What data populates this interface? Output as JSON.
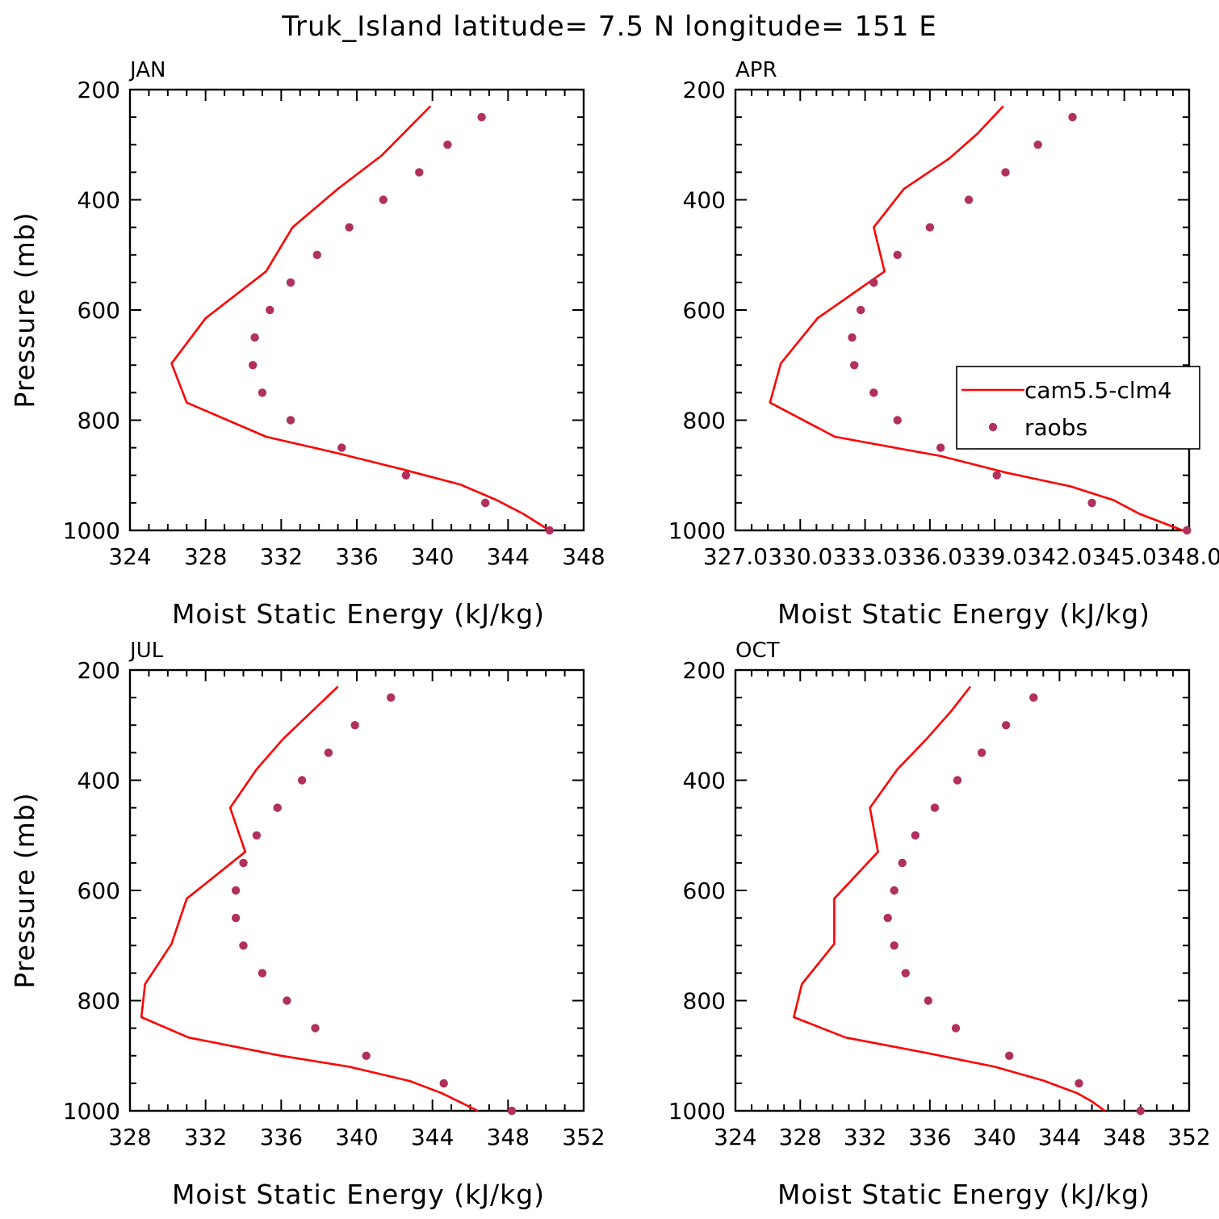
{
  "figure": {
    "title": "Truk_Island  latitude= 7.5 N longitude= 151 E"
  },
  "legend": {
    "model_label": "cam5.5-clm4",
    "obs_label": "raobs"
  },
  "colors": {
    "model": "#ff0000",
    "obs": "#b0305e",
    "axis": "#000000"
  },
  "chart_data": [
    {
      "type": "line",
      "panel": "JAN",
      "title": "JAN",
      "xlabel": "Moist Static Energy (kJ/kg)",
      "ylabel": "Pressure (mb)",
      "xlim": [
        324,
        348
      ],
      "ylim": [
        1000,
        200
      ],
      "xticks": [
        324,
        328,
        332,
        336,
        340,
        344,
        348
      ],
      "xticklabels": [
        "324",
        "328",
        "332",
        "336",
        "340",
        "344",
        "348"
      ],
      "yticks": [
        200,
        400,
        600,
        800,
        1000
      ],
      "yticklabels": [
        "200",
        "400",
        "600",
        "800",
        "1000"
      ],
      "legend": false,
      "series": [
        {
          "name": "cam5.5-clm4",
          "kind": "line",
          "x": [
            339.9,
            337.3,
            335.0,
            332.6,
            331.2,
            328.0,
            326.2,
            327.0,
            331.2,
            335.0,
            338.5,
            341.5,
            343.4,
            344.8,
            346.2
          ],
          "y": [
            230,
            320,
            380,
            450,
            530,
            615,
            697,
            768,
            830,
            860,
            890,
            917,
            945,
            970,
            1000
          ]
        },
        {
          "name": "raobs",
          "kind": "scatter",
          "x": [
            342.6,
            340.8,
            339.3,
            337.4,
            335.6,
            333.9,
            332.5,
            331.4,
            330.6,
            330.5,
            331.0,
            332.5,
            335.2,
            338.6,
            342.8,
            346.2
          ],
          "y": [
            250,
            300,
            350,
            400,
            450,
            500,
            550,
            600,
            650,
            700,
            750,
            800,
            850,
            900,
            950,
            1000
          ]
        }
      ]
    },
    {
      "type": "line",
      "panel": "APR",
      "title": "APR",
      "xlabel": "Moist Static Energy (kJ/kg)",
      "ylabel": "",
      "xlim": [
        327,
        348
      ],
      "ylim": [
        1000,
        200
      ],
      "xticks": [
        327,
        330,
        333,
        336,
        339,
        342,
        345,
        348
      ],
      "xticklabels": [
        "327.0",
        "330.0",
        "333.0",
        "336.0",
        "339.0",
        "342.0",
        "345.0",
        "348.0"
      ],
      "yticks": [
        200,
        400,
        600,
        800,
        1000
      ],
      "yticklabels": [
        "200",
        "400",
        "600",
        "800",
        "1000"
      ],
      "legend": true,
      "series": [
        {
          "name": "cam5.5-clm4",
          "kind": "line",
          "x": [
            339.4,
            338.2,
            336.9,
            334.8,
            333.4,
            333.9,
            330.8,
            329.1,
            328.6,
            331.6,
            336.5,
            339.5,
            342.5,
            344.5,
            345.7,
            347.7
          ],
          "y": [
            230,
            280,
            325,
            380,
            450,
            530,
            615,
            697,
            768,
            830,
            865,
            895,
            920,
            945,
            970,
            1000
          ]
        },
        {
          "name": "raobs",
          "kind": "scatter",
          "x": [
            342.6,
            341.0,
            339.5,
            337.8,
            336.0,
            334.5,
            333.4,
            332.8,
            332.4,
            332.5,
            333.4,
            334.5,
            336.5,
            339.1,
            343.5,
            347.9
          ],
          "y": [
            250,
            300,
            350,
            400,
            450,
            500,
            550,
            600,
            650,
            700,
            750,
            800,
            850,
            900,
            950,
            1000
          ]
        }
      ]
    },
    {
      "type": "line",
      "panel": "JUL",
      "title": "JUL",
      "xlabel": "Moist Static Energy (kJ/kg)",
      "ylabel": "Pressure (mb)",
      "xlim": [
        328,
        352
      ],
      "ylim": [
        1000,
        200
      ],
      "xticks": [
        328,
        332,
        336,
        340,
        344,
        348,
        352
      ],
      "xticklabels": [
        "328",
        "332",
        "336",
        "340",
        "344",
        "348",
        "352"
      ],
      "yticks": [
        200,
        400,
        600,
        800,
        1000
      ],
      "yticklabels": [
        "200",
        "400",
        "600",
        "800",
        "1000"
      ],
      "legend": false,
      "series": [
        {
          "name": "cam5.5-clm4",
          "kind": "line",
          "x": [
            339.0,
            336.1,
            334.7,
            333.3,
            334.1,
            331.0,
            330.2,
            328.8,
            328.6,
            331.1,
            336.0,
            339.6,
            342.8,
            344.5,
            346.4
          ],
          "y": [
            230,
            325,
            380,
            450,
            530,
            615,
            697,
            770,
            830,
            867,
            900,
            920,
            946,
            968,
            1000
          ]
        },
        {
          "name": "raobs",
          "kind": "scatter",
          "x": [
            341.8,
            339.9,
            338.5,
            337.1,
            335.8,
            334.7,
            334.0,
            333.6,
            333.6,
            334.0,
            335.0,
            336.3,
            337.8,
            340.5,
            344.6,
            348.2
          ],
          "y": [
            250,
            300,
            350,
            400,
            450,
            500,
            550,
            600,
            650,
            700,
            750,
            800,
            850,
            900,
            950,
            1000
          ]
        }
      ]
    },
    {
      "type": "line",
      "panel": "OCT",
      "title": "OCT",
      "xlabel": "Moist Static Energy (kJ/kg)",
      "ylabel": "",
      "xlim": [
        324,
        352
      ],
      "ylim": [
        1000,
        200
      ],
      "xticks": [
        324,
        328,
        332,
        336,
        340,
        344,
        348,
        352
      ],
      "xticklabels": [
        "324",
        "328",
        "332",
        "336",
        "340",
        "344",
        "348",
        "352"
      ],
      "yticks": [
        200,
        400,
        600,
        800,
        1000
      ],
      "yticklabels": [
        "200",
        "400",
        "600",
        "800",
        "1000"
      ],
      "legend": false,
      "series": [
        {
          "name": "cam5.5-clm4",
          "kind": "line",
          "x": [
            338.5,
            337.3,
            335.8,
            334.0,
            332.3,
            332.8,
            330.1,
            330.1,
            328.1,
            327.6,
            330.8,
            335.8,
            340.0,
            343.0,
            345.1,
            346.0,
            346.8
          ],
          "y": [
            230,
            275,
            325,
            380,
            450,
            530,
            615,
            697,
            770,
            830,
            867,
            895,
            920,
            945,
            968,
            983,
            1000
          ]
        },
        {
          "name": "raobs",
          "kind": "scatter",
          "x": [
            342.4,
            340.7,
            339.2,
            337.7,
            336.3,
            335.1,
            334.3,
            333.8,
            333.4,
            333.8,
            334.5,
            335.9,
            337.6,
            340.9,
            345.2,
            349.0
          ],
          "y": [
            250,
            300,
            350,
            400,
            450,
            500,
            550,
            600,
            650,
            700,
            750,
            800,
            850,
            900,
            950,
            1000
          ]
        }
      ]
    }
  ]
}
